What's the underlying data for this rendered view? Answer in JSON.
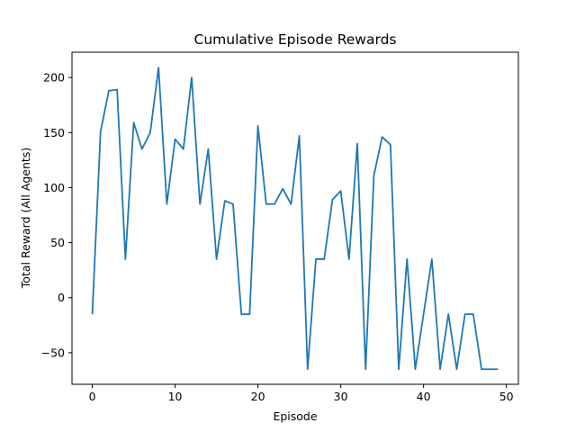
{
  "chart_data": {
    "type": "line",
    "title": "Cumulative Episode Rewards",
    "xlabel": "Episode",
    "ylabel": "Total Reward (All Agents)",
    "xlim": [
      -2.45,
      51.45
    ],
    "ylim": [
      -78.7,
      223
    ],
    "xticks": [
      0,
      10,
      20,
      30,
      40,
      50
    ],
    "yticks": [
      -50,
      0,
      50,
      100,
      150,
      200
    ],
    "grid": false,
    "line_color": "#1f77b4",
    "series": [
      {
        "x": [
          0,
          1,
          2,
          3,
          4,
          5,
          6,
          7,
          8,
          9,
          10,
          11,
          12,
          13,
          14,
          15,
          16,
          17,
          18,
          19,
          20,
          21,
          22,
          23,
          24,
          25,
          26,
          27,
          28,
          29,
          30,
          31,
          32,
          33,
          34,
          35,
          36,
          37,
          38,
          39,
          40,
          41,
          42,
          43,
          44,
          45,
          46,
          47,
          48,
          49
        ],
        "values": [
          -15,
          151,
          188,
          189,
          35,
          159,
          135,
          150,
          209,
          85,
          144,
          135,
          200,
          85,
          135,
          35,
          88,
          85,
          -15,
          -15,
          156,
          85,
          85,
          99,
          85,
          147,
          -65,
          35,
          35,
          89,
          97,
          35,
          140,
          -65,
          111,
          146,
          139,
          -65,
          35,
          -65,
          -15,
          35,
          -65,
          -15,
          -65,
          -15,
          -15,
          -65,
          -65,
          -65
        ]
      }
    ]
  }
}
